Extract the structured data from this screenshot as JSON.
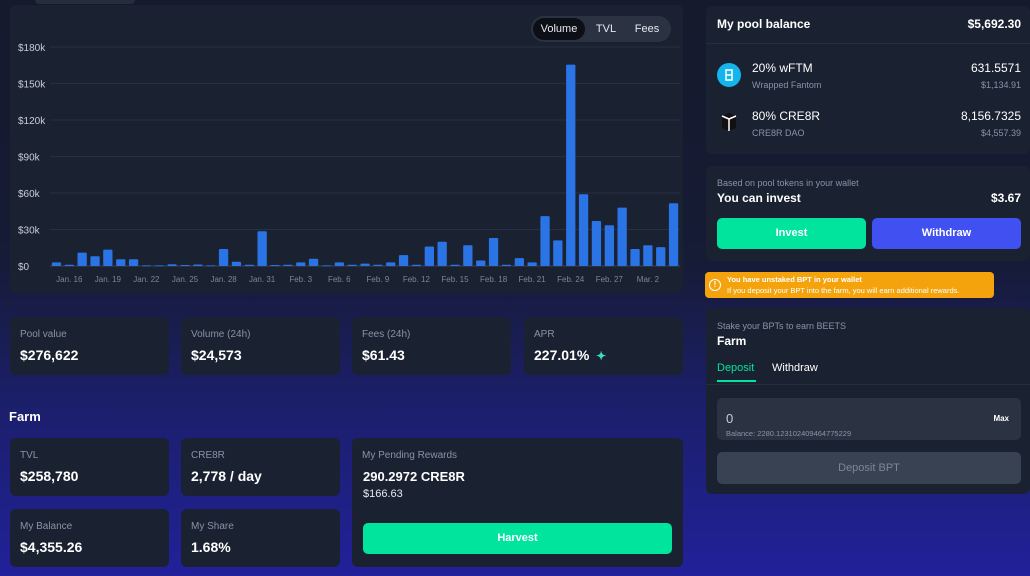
{
  "chart_tabs": [
    "Volume",
    "TVL",
    "Fees"
  ],
  "chart_data": {
    "type": "bar",
    "ylim": [
      0,
      180000
    ],
    "yticks": [
      "$0",
      "$30k",
      "$60k",
      "$90k",
      "$120k",
      "$150k",
      "$180k"
    ],
    "xticks": [
      "Jan. 16",
      "Jan. 19",
      "Jan. 22",
      "Jan. 25",
      "Jan. 28",
      "Jan. 31",
      "Feb. 3",
      "Feb. 6",
      "Feb. 9",
      "Feb. 12",
      "Feb. 15",
      "Feb. 18",
      "Feb. 21",
      "Feb. 24",
      "Feb. 27",
      "Mar. 2"
    ],
    "values": [
      3000,
      1000,
      11000,
      8000,
      13500,
      5500,
      5500,
      500,
      500,
      1500,
      800,
      1200,
      500,
      14000,
      3500,
      1000,
      28500,
      800,
      1000,
      3000,
      6000,
      500,
      3000,
      1000,
      2000,
      1000,
      3000,
      9000,
      1000,
      16000,
      20000,
      1000,
      17000,
      4500,
      23000,
      1000,
      6500,
      3000,
      41000,
      21000,
      165500,
      59000,
      37000,
      33500,
      48000,
      14000,
      17000,
      15500,
      51500
    ]
  },
  "stats": [
    {
      "label": "Pool value",
      "value": "$276,622"
    },
    {
      "label": "Volume (24h)",
      "value": "$24,573"
    },
    {
      "label": "Fees (24h)",
      "value": "$61.43"
    },
    {
      "label": "APR",
      "value": "227.01%"
    }
  ],
  "farm": {
    "heading": "Farm",
    "tvl_label": "TVL",
    "tvl_value": "$258,780",
    "token_label": "CRE8R",
    "token_value": "2,778 / day",
    "balance_label": "My Balance",
    "balance_value": "$4,355.26",
    "share_label": "My Share",
    "share_value": "1.68%",
    "rewards_label": "My Pending Rewards",
    "rewards_value": "290.2972 CRE8R",
    "rewards_usd": "$166.63",
    "harvest_label": "Harvest"
  },
  "pool_balance": {
    "title": "My pool balance",
    "total": "$5,692.30",
    "tokens": [
      {
        "name": "20% wFTM",
        "sub": "Wrapped Fantom",
        "amount": "631.5571",
        "usd": "$1,134.91",
        "icon": "fantom-icon"
      },
      {
        "name": "80% CRE8R",
        "sub": "CRE8R DAO",
        "amount": "8,156.7325",
        "usd": "$4,557.39",
        "icon": "cre8r-icon"
      }
    ]
  },
  "invest": {
    "note": "Based on pool tokens in your wallet",
    "label": "You can invest",
    "value": "$3.67",
    "invest_btn": "Invest",
    "withdraw_btn": "Withdraw"
  },
  "warning": {
    "title": "You have unstaked BPT in your wallet",
    "body": "If you deposit your BPT into the farm, you will earn additional rewards."
  },
  "stake": {
    "note": "Stake your BPTs to earn BEETS",
    "title": "Farm",
    "tab_deposit": "Deposit",
    "tab_withdraw": "Withdraw",
    "input_value": "0",
    "max_label": "Max",
    "balance_text": "Balance: 2280.123102409464775229",
    "deposit_btn": "Deposit BPT"
  },
  "colors": {
    "accent_green": "#00e49e",
    "accent_blue": "#4150f0",
    "bar": "#2a74e6",
    "warning": "#f4a30c"
  }
}
